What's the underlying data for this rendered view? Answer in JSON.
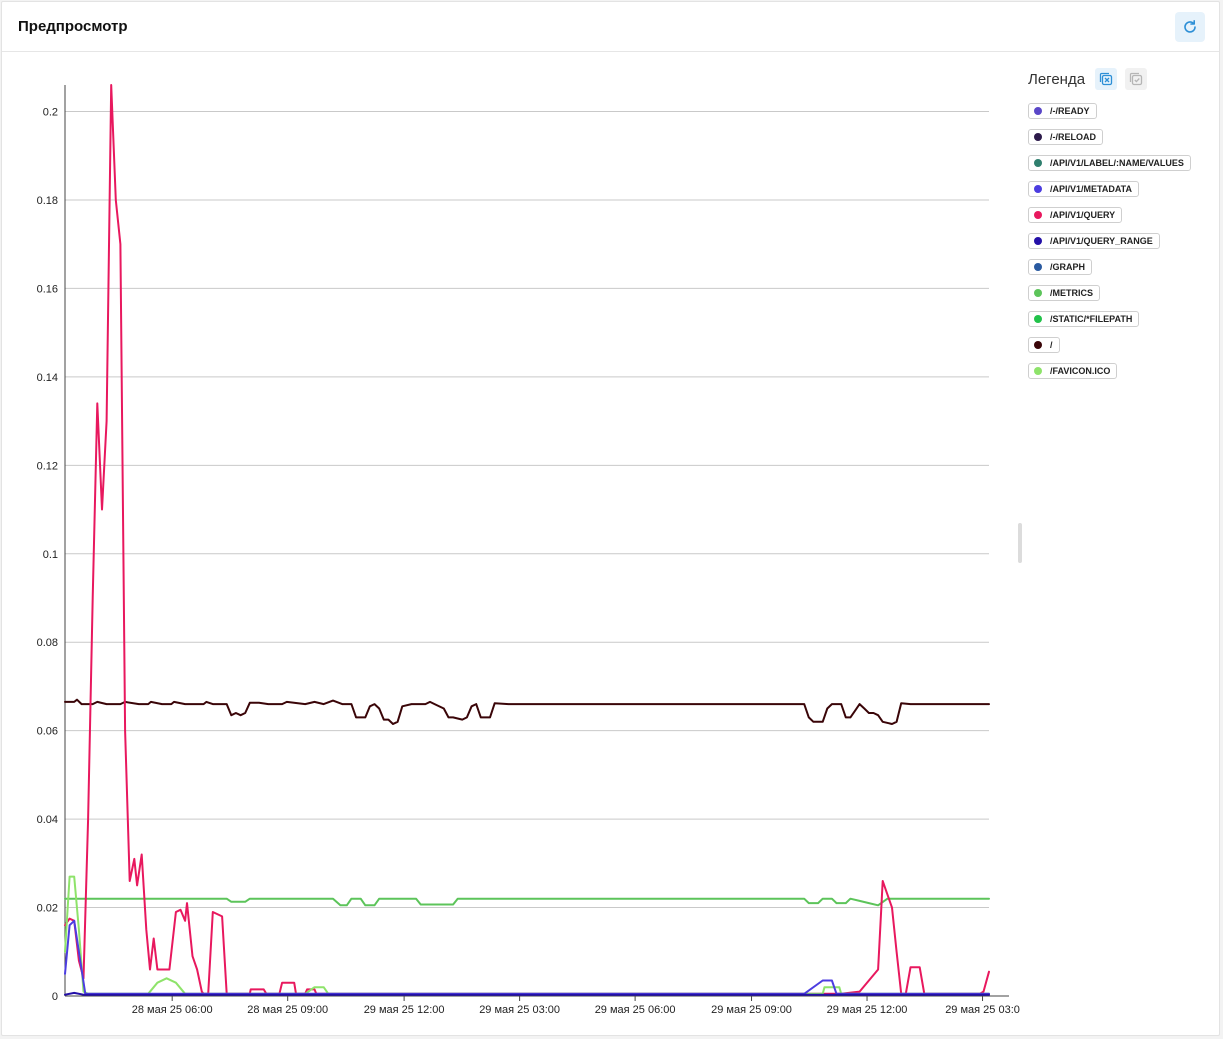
{
  "header": {
    "title": "Предпросмотр"
  },
  "legend": {
    "title": "Легенда",
    "items": [
      {
        "label": "/-/READY",
        "color": "#5a47c8"
      },
      {
        "label": "/-/RELOAD",
        "color": "#2c1a4a"
      },
      {
        "label": "/API/V1/LABEL/:NAME/VALUES",
        "color": "#2f7f6e"
      },
      {
        "label": "/API/V1/METADATA",
        "color": "#4c3de0"
      },
      {
        "label": "/API/V1/QUERY",
        "color": "#e8185e"
      },
      {
        "label": "/API/V1/QUERY_RANGE",
        "color": "#2410a8"
      },
      {
        "label": "/GRAPH",
        "color": "#2a5aa0"
      },
      {
        "label": "/METRICS",
        "color": "#5cc45a"
      },
      {
        "label": "/STATIC/*FILEPATH",
        "color": "#22c24a"
      },
      {
        "label": "/",
        "color": "#3a0508"
      },
      {
        "label": "/FAVICON.ICO",
        "color": "#8ee36a"
      }
    ]
  },
  "chart_data": {
    "type": "line",
    "ylim": [
      0,
      0.206
    ],
    "yticks": [
      "0",
      "0.02",
      "0.04",
      "0.06",
      "0.08",
      "0.1",
      "0.12",
      "0.14",
      "0.16",
      "0.18",
      "0.2"
    ],
    "xticks": [
      "28 мая 25 06:00",
      "28 мая 25 09:00",
      "29 мая 25 12:00",
      "29 мая 25 03:00",
      "29 мая 25 06:00",
      "29 мая 25 09:00",
      "29 мая 25 12:00",
      "29 мая 25 03:0"
    ],
    "xlim": [
      0,
      100
    ],
    "xtick_positions": [
      11.6,
      24.1,
      36.7,
      49.2,
      61.7,
      74.3,
      86.8,
      99.3
    ],
    "grid": true,
    "series": [
      {
        "name": "/",
        "color": "#3a0508",
        "points": [
          [
            0,
            0.0665
          ],
          [
            1,
            0.0665
          ],
          [
            1.3,
            0.067
          ],
          [
            1.8,
            0.066
          ],
          [
            3,
            0.066
          ],
          [
            3.5,
            0.0665
          ],
          [
            4.5,
            0.066
          ],
          [
            6,
            0.066
          ],
          [
            6.5,
            0.0665
          ],
          [
            8,
            0.066
          ],
          [
            9,
            0.066
          ],
          [
            9.3,
            0.0665
          ],
          [
            10.5,
            0.066
          ],
          [
            11.5,
            0.066
          ],
          [
            11.8,
            0.0665
          ],
          [
            13,
            0.066
          ],
          [
            14,
            0.066
          ],
          [
            15,
            0.066
          ],
          [
            15.3,
            0.0665
          ],
          [
            16,
            0.066
          ],
          [
            17.5,
            0.066
          ],
          [
            18,
            0.0635
          ],
          [
            18.5,
            0.064
          ],
          [
            19,
            0.0635
          ],
          [
            19.5,
            0.064
          ],
          [
            20,
            0.0663
          ],
          [
            21,
            0.0663
          ],
          [
            22,
            0.066
          ],
          [
            23.5,
            0.066
          ],
          [
            24,
            0.0665
          ],
          [
            26,
            0.066
          ],
          [
            27,
            0.0665
          ],
          [
            28,
            0.066
          ],
          [
            29,
            0.0668
          ],
          [
            30,
            0.066
          ],
          [
            31,
            0.066
          ],
          [
            31.5,
            0.063
          ],
          [
            32.5,
            0.063
          ],
          [
            33,
            0.0655
          ],
          [
            33.5,
            0.066
          ],
          [
            34,
            0.065
          ],
          [
            34.5,
            0.0625
          ],
          [
            35,
            0.0625
          ],
          [
            35.5,
            0.0615
          ],
          [
            36,
            0.062
          ],
          [
            36.5,
            0.0655
          ],
          [
            37.5,
            0.066
          ],
          [
            38,
            0.066
          ],
          [
            39,
            0.066
          ],
          [
            39.5,
            0.0665
          ],
          [
            40,
            0.066
          ],
          [
            41,
            0.065
          ],
          [
            41.5,
            0.063
          ],
          [
            42,
            0.063
          ],
          [
            43,
            0.0625
          ],
          [
            43.5,
            0.063
          ],
          [
            44,
            0.0655
          ],
          [
            44.5,
            0.066
          ],
          [
            45,
            0.063
          ],
          [
            46,
            0.063
          ],
          [
            46.5,
            0.0662
          ],
          [
            48,
            0.066
          ],
          [
            50,
            0.066
          ],
          [
            52,
            0.066
          ],
          [
            55,
            0.066
          ],
          [
            58,
            0.066
          ],
          [
            62,
            0.066
          ],
          [
            66,
            0.066
          ],
          [
            70,
            0.066
          ],
          [
            75,
            0.066
          ],
          [
            80,
            0.066
          ],
          [
            80.5,
            0.063
          ],
          [
            81,
            0.062
          ],
          [
            82,
            0.062
          ],
          [
            82.5,
            0.065
          ],
          [
            83,
            0.066
          ],
          [
            84,
            0.066
          ],
          [
            84.5,
            0.063
          ],
          [
            85,
            0.063
          ],
          [
            85.5,
            0.0645
          ],
          [
            86,
            0.066
          ],
          [
            86.5,
            0.065
          ],
          [
            87,
            0.064
          ],
          [
            87.5,
            0.064
          ],
          [
            88,
            0.0635
          ],
          [
            88.5,
            0.062
          ],
          [
            89.5,
            0.0615
          ],
          [
            90,
            0.062
          ],
          [
            90.5,
            0.0662
          ],
          [
            91.5,
            0.066
          ],
          [
            95,
            0.066
          ],
          [
            100,
            0.066
          ]
        ]
      },
      {
        "name": "/METRICS",
        "color": "#5cc45a",
        "points": [
          [
            0,
            0.022
          ],
          [
            5,
            0.022
          ],
          [
            10,
            0.022
          ],
          [
            17.5,
            0.022
          ],
          [
            18,
            0.0213
          ],
          [
            19.5,
            0.0213
          ],
          [
            20,
            0.022
          ],
          [
            25,
            0.022
          ],
          [
            29,
            0.022
          ],
          [
            29.8,
            0.0205
          ],
          [
            30.5,
            0.0205
          ],
          [
            31,
            0.022
          ],
          [
            32,
            0.022
          ],
          [
            32.5,
            0.0205
          ],
          [
            33.5,
            0.0205
          ],
          [
            34,
            0.022
          ],
          [
            38,
            0.022
          ],
          [
            38.5,
            0.0207
          ],
          [
            42,
            0.0207
          ],
          [
            42.5,
            0.022
          ],
          [
            50,
            0.022
          ],
          [
            60,
            0.022
          ],
          [
            75,
            0.022
          ],
          [
            80,
            0.022
          ],
          [
            80.5,
            0.021
          ],
          [
            81.5,
            0.021
          ],
          [
            82,
            0.022
          ],
          [
            83,
            0.022
          ],
          [
            83.5,
            0.021
          ],
          [
            84.5,
            0.021
          ],
          [
            85,
            0.022
          ],
          [
            86,
            0.0215
          ],
          [
            87,
            0.021
          ],
          [
            88,
            0.0205
          ],
          [
            89,
            0.022
          ],
          [
            95,
            0.022
          ],
          [
            100,
            0.022
          ]
        ]
      },
      {
        "name": "/API/V1/QUERY",
        "color": "#e8185e",
        "points": [
          [
            0,
            0.016
          ],
          [
            0.5,
            0.0175
          ],
          [
            1,
            0.017
          ],
          [
            1.5,
            0.008
          ],
          [
            2,
            0.004
          ],
          [
            2.5,
            0.04
          ],
          [
            3,
            0.09
          ],
          [
            3.5,
            0.134
          ],
          [
            4,
            0.11
          ],
          [
            4.5,
            0.13
          ],
          [
            5,
            0.206
          ],
          [
            5.5,
            0.18
          ],
          [
            6,
            0.17
          ],
          [
            6.5,
            0.06
          ],
          [
            7,
            0.026
          ],
          [
            7.5,
            0.031
          ],
          [
            7.8,
            0.025
          ],
          [
            8.3,
            0.032
          ],
          [
            8.8,
            0.015
          ],
          [
            9.2,
            0.006
          ],
          [
            9.6,
            0.013
          ],
          [
            10,
            0.006
          ],
          [
            10.8,
            0.006
          ],
          [
            11.3,
            0.006
          ],
          [
            12,
            0.019
          ],
          [
            12.5,
            0.0195
          ],
          [
            13,
            0.017
          ],
          [
            13.2,
            0.021
          ],
          [
            13.8,
            0.009
          ],
          [
            14.3,
            0.006
          ],
          [
            14.8,
            0.001
          ],
          [
            15,
            0.0005
          ],
          [
            15.5,
            0.0005
          ],
          [
            16,
            0.019
          ],
          [
            17,
            0.018
          ],
          [
            17.5,
            0.0005
          ],
          [
            18,
            0.0005
          ],
          [
            20,
            0.0005
          ],
          [
            20.1,
            0.0015
          ],
          [
            21.5,
            0.0015
          ],
          [
            21.8,
            0.0005
          ],
          [
            23.2,
            0.0005
          ],
          [
            23.5,
            0.003
          ],
          [
            24.8,
            0.003
          ],
          [
            25,
            0.0005
          ],
          [
            26,
            0.0005
          ],
          [
            26.2,
            0.0015
          ],
          [
            27,
            0.0015
          ],
          [
            27.2,
            0.0005
          ],
          [
            28,
            0.0005
          ],
          [
            80,
            0.0005
          ],
          [
            84,
            0.0005
          ],
          [
            86,
            0.001
          ],
          [
            88,
            0.006
          ],
          [
            88.5,
            0.026
          ],
          [
            89.5,
            0.02
          ],
          [
            90,
            0.01
          ],
          [
            90.5,
            0.0005
          ],
          [
            91,
            0.0005
          ],
          [
            91.5,
            0.0065
          ],
          [
            92.5,
            0.0065
          ],
          [
            93,
            0.0005
          ],
          [
            95,
            0.0005
          ],
          [
            99,
            0.0005
          ],
          [
            99.4,
            0.001
          ],
          [
            100,
            0.0055
          ]
        ]
      },
      {
        "name": "/FAVICON.ICO",
        "color": "#8ee36a",
        "points": [
          [
            0,
            0.01
          ],
          [
            0.5,
            0.027
          ],
          [
            1,
            0.027
          ],
          [
            1.5,
            0.015
          ],
          [
            2,
            0.001
          ],
          [
            2.5,
            0.0005
          ],
          [
            9,
            0.0005
          ],
          [
            10,
            0.003
          ],
          [
            11,
            0.004
          ],
          [
            12,
            0.003
          ],
          [
            13,
            0.0005
          ],
          [
            26,
            0.0005
          ],
          [
            27,
            0.002
          ],
          [
            28,
            0.002
          ],
          [
            28.5,
            0.0005
          ],
          [
            82,
            0.0005
          ],
          [
            82.2,
            0.002
          ],
          [
            83.8,
            0.002
          ],
          [
            84,
            0.0005
          ],
          [
            100,
            0.0005
          ]
        ]
      },
      {
        "name": "/API/V1/METADATA",
        "color": "#4c3de0",
        "points": [
          [
            0,
            0.005
          ],
          [
            0.5,
            0.016
          ],
          [
            1,
            0.017
          ],
          [
            1.8,
            0.006
          ],
          [
            2.2,
            0.0005
          ],
          [
            10,
            0.0005
          ],
          [
            80,
            0.0005
          ],
          [
            82,
            0.0035
          ],
          [
            83,
            0.0035
          ],
          [
            83.5,
            0.0005
          ],
          [
            100,
            0.0005
          ]
        ]
      },
      {
        "name": "/API/V1/QUERY_RANGE",
        "color": "#2410a8",
        "points": [
          [
            0,
            0.0003
          ],
          [
            1,
            0.0007
          ],
          [
            2,
            0.0003
          ],
          [
            100,
            0.0003
          ]
        ]
      }
    ]
  }
}
